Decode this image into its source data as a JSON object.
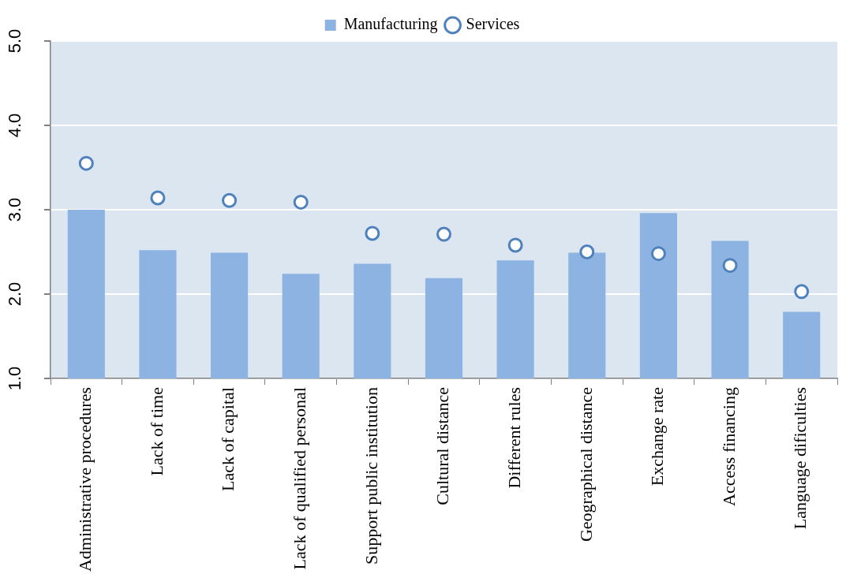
{
  "chart_data": {
    "type": "bar",
    "categories": [
      "Administrative procedures",
      "Lack of time",
      "Lack of capital",
      "Lack of qualified personal",
      "Support public institution",
      "Cultural distance",
      "Different rules",
      "Geographical distance",
      "Exchange rate",
      "Access financing",
      "Language dificulties"
    ],
    "series": [
      {
        "name": "Manufacturing",
        "color": "#8db3e2",
        "values": [
          3.0,
          2.52,
          2.49,
          2.24,
          2.36,
          2.19,
          2.4,
          2.49,
          2.96,
          2.63,
          1.79
        ]
      },
      {
        "name": "Services",
        "type": "scatter",
        "color": "#4f81bd",
        "marker": "circle",
        "values": [
          3.55,
          3.14,
          3.11,
          3.09,
          2.72,
          2.71,
          2.58,
          2.5,
          2.48,
          2.34,
          2.03
        ]
      }
    ],
    "ylim": [
      1.0,
      5.0
    ],
    "yticks": [
      {
        "value": 1,
        "label": "1.0"
      },
      {
        "value": 2,
        "label": "2.0"
      },
      {
        "value": 3,
        "label": "3.0"
      },
      {
        "value": 4,
        "label": "4.0"
      },
      {
        "value": 5,
        "label": "5.0"
      }
    ],
    "grid": "y",
    "legend": "top"
  }
}
